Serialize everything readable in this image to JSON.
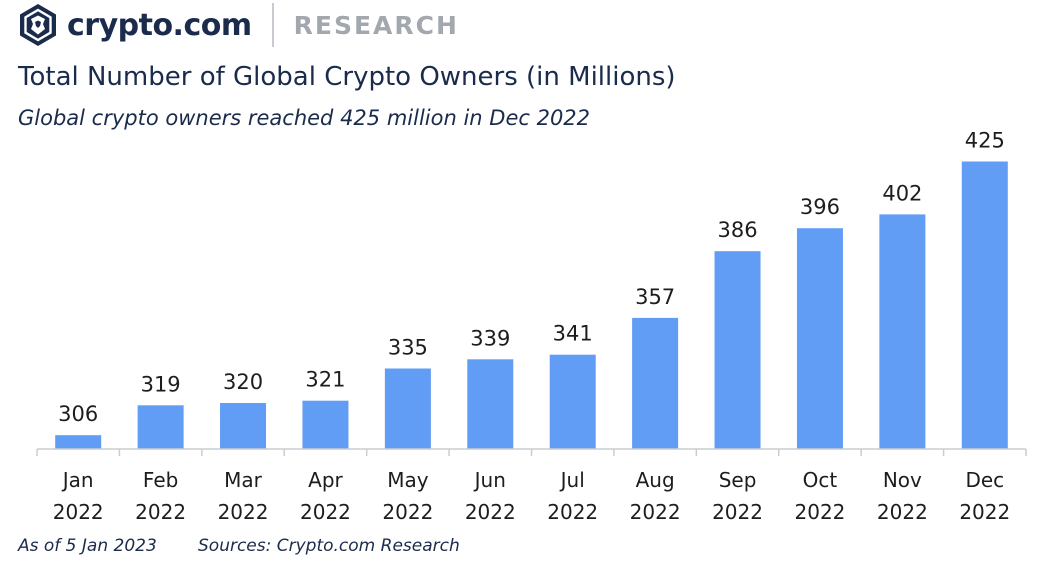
{
  "header": {
    "brand": "crypto.com",
    "section": "RESEARCH"
  },
  "colors": {
    "bar": "#619cf5",
    "navy": "#1a2b4c",
    "axis": "#c9cdd2"
  },
  "chart_data": {
    "type": "bar",
    "title": "Total Number of Global Crypto Owners (in Millions)",
    "subtitle": "Global crypto owners reached 425 million in Dec 2022",
    "categories": [
      [
        "Jan",
        "2022"
      ],
      [
        "Feb",
        "2022"
      ],
      [
        "Mar",
        "2022"
      ],
      [
        "Apr",
        "2022"
      ],
      [
        "May",
        "2022"
      ],
      [
        "Jun",
        "2022"
      ],
      [
        "Jul",
        "2022"
      ],
      [
        "Aug",
        "2022"
      ],
      [
        "Sep",
        "2022"
      ],
      [
        "Oct",
        "2022"
      ],
      [
        "Nov",
        "2022"
      ],
      [
        "Dec",
        "2022"
      ]
    ],
    "values": [
      306,
      319,
      320,
      321,
      335,
      339,
      341,
      357,
      386,
      396,
      402,
      425
    ],
    "ylim": [
      300,
      430
    ],
    "grid": false,
    "data_labels": true
  },
  "footer": {
    "as_of": "As of 5 Jan 2023",
    "sources": "Sources: Crypto.com Research"
  }
}
